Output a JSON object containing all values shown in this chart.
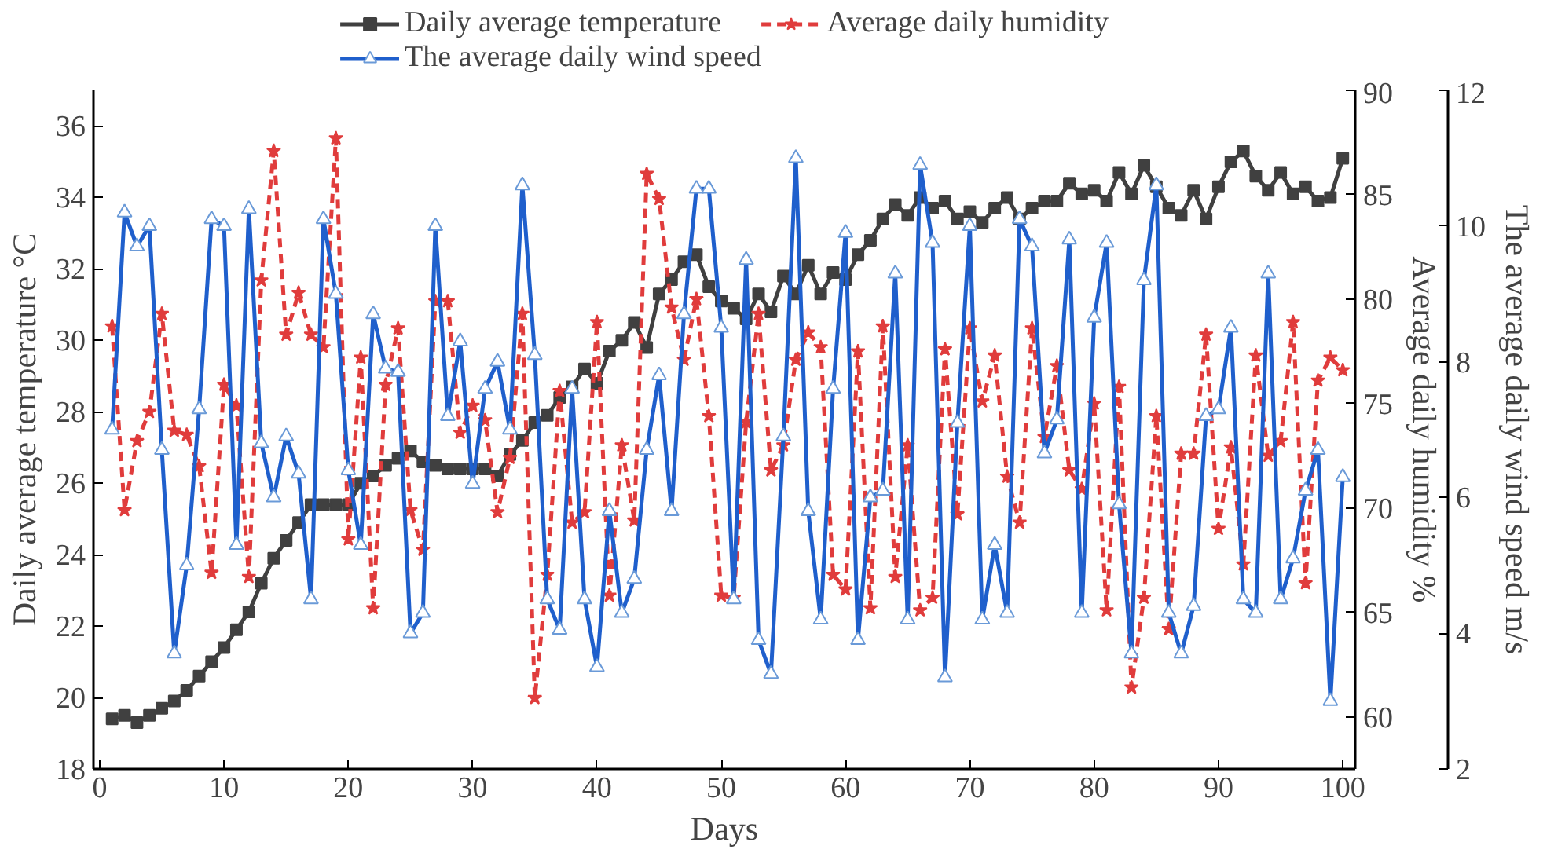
{
  "chart_data": {
    "type": "line",
    "xlabel": "Days",
    "ylabel": "Daily average temperature °C",
    "y2label": "Average daily humidity %",
    "y3label": "The average daily wind speed m/s",
    "x": [
      1,
      2,
      3,
      4,
      5,
      6,
      7,
      8,
      9,
      10,
      11,
      12,
      13,
      14,
      15,
      16,
      17,
      18,
      19,
      20,
      21,
      22,
      23,
      24,
      25,
      26,
      27,
      28,
      29,
      30,
      31,
      32,
      33,
      34,
      35,
      36,
      37,
      38,
      39,
      40,
      41,
      42,
      43,
      44,
      45,
      46,
      47,
      48,
      49,
      50,
      51,
      52,
      53,
      54,
      55,
      56,
      57,
      58,
      59,
      60,
      61,
      62,
      63,
      64,
      65,
      66,
      67,
      68,
      69,
      70,
      71,
      72,
      73,
      74,
      75,
      76,
      77,
      78,
      79,
      80,
      81,
      82,
      83,
      84,
      85,
      86,
      87,
      88,
      89,
      90,
      91,
      92,
      93,
      94,
      95,
      96,
      97,
      98,
      99,
      100
    ],
    "xlim": [
      -0.5,
      101
    ],
    "xticks": [
      0,
      10,
      20,
      30,
      40,
      50,
      60,
      70,
      80,
      90,
      100
    ],
    "ylim": [
      18,
      37
    ],
    "yticks": [
      18,
      20,
      22,
      24,
      26,
      28,
      30,
      32,
      34,
      36
    ],
    "y2lim": [
      57.5,
      90
    ],
    "y2ticks": [
      60,
      65,
      70,
      75,
      80,
      85,
      90
    ],
    "y3lim": [
      2,
      12
    ],
    "y3ticks": [
      2,
      4,
      6,
      8,
      10,
      12
    ],
    "legend": "top",
    "grid": false,
    "series": [
      {
        "name": "Daily average temperature",
        "color": "#404040",
        "marker": "square",
        "line_style": "solid",
        "values": [
          19.4,
          19.5,
          19.3,
          19.5,
          19.7,
          19.9,
          20.2,
          20.6,
          21.0,
          21.4,
          21.9,
          22.4,
          23.2,
          23.9,
          24.4,
          24.9,
          25.4,
          25.4,
          25.4,
          25.4,
          26.0,
          26.2,
          26.5,
          26.7,
          26.9,
          26.6,
          26.5,
          26.4,
          26.4,
          26.4,
          26.4,
          26.2,
          26.8,
          27.2,
          27.7,
          27.9,
          28.4,
          28.7,
          29.2,
          28.8,
          29.7,
          30.0,
          30.5,
          29.8,
          31.3,
          31.7,
          32.2,
          32.4,
          31.5,
          31.1,
          30.9,
          30.6,
          31.3,
          30.8,
          31.8,
          31.3,
          32.1,
          31.3,
          31.9,
          31.7,
          32.4,
          32.8,
          33.4,
          33.8,
          33.5,
          34.0,
          33.7,
          33.9,
          33.4,
          33.6,
          33.3,
          33.7,
          34.0,
          33.4,
          33.7,
          33.9,
          33.9,
          34.4,
          34.1,
          34.2,
          33.9,
          34.7,
          34.1,
          34.9,
          34.3,
          33.7,
          33.5,
          34.2,
          33.4,
          34.3,
          35.0,
          35.3,
          34.6,
          34.2,
          34.7,
          34.1,
          34.3,
          33.9,
          34.0,
          35.1
        ]
      },
      {
        "name": "Average daily humidity",
        "axis": "y2",
        "color": "#e03c3c",
        "marker": "star",
        "line_style": "dashed",
        "values": [
          78.7,
          69.9,
          73.2,
          74.6,
          79.3,
          73.7,
          73.5,
          72.0,
          66.9,
          75.9,
          74.9,
          66.7,
          80.9,
          87.1,
          78.3,
          80.3,
          78.3,
          77.7,
          87.7,
          68.5,
          77.2,
          65.2,
          75.9,
          78.6,
          69.9,
          68.0,
          79.9,
          79.9,
          73.6,
          74.9,
          74.2,
          69.8,
          72.4,
          79.3,
          60.9,
          66.8,
          75.6,
          69.3,
          69.8,
          78.9,
          65.8,
          73.0,
          69.4,
          86.0,
          84.8,
          79.6,
          77.1,
          80.0,
          74.4,
          65.8,
          65.7,
          74.1,
          79.3,
          71.8,
          73.0,
          77.1,
          78.4,
          77.7,
          66.8,
          66.1,
          77.5,
          65.2,
          78.7,
          66.7,
          73.0,
          65.1,
          65.7,
          77.6,
          69.7,
          78.6,
          75.1,
          77.3,
          71.5,
          69.3,
          78.6,
          73.4,
          76.8,
          71.8,
          70.9,
          75.0,
          65.1,
          75.8,
          61.4,
          65.7,
          74.4,
          64.2,
          72.6,
          72.6,
          78.3,
          69.0,
          72.9,
          67.3,
          77.3,
          72.5,
          73.2,
          78.9,
          66.4,
          76.1,
          77.2,
          76.6
        ]
      },
      {
        "name": "The average daily wind speed",
        "axis": "y3",
        "color": "#1f5fcc",
        "marker": "triangle",
        "line_style": "solid",
        "values": [
          7.0,
          10.2,
          9.7,
          10.0,
          6.7,
          3.7,
          5.0,
          7.3,
          10.1,
          10.0,
          5.3,
          10.25,
          6.8,
          6.0,
          6.9,
          6.35,
          4.5,
          10.1,
          9.0,
          6.4,
          5.3,
          8.7,
          7.9,
          7.85,
          4.0,
          4.3,
          10.0,
          7.2,
          8.3,
          6.2,
          7.6,
          8.0,
          7.0,
          10.6,
          8.1,
          4.5,
          4.05,
          7.6,
          4.5,
          3.5,
          5.8,
          4.3,
          4.8,
          6.7,
          7.8,
          5.8,
          8.7,
          10.55,
          10.55,
          8.5,
          4.5,
          9.5,
          3.9,
          3.4,
          6.9,
          11.0,
          5.8,
          4.2,
          7.6,
          9.9,
          3.9,
          6.0,
          6.1,
          9.3,
          4.2,
          10.9,
          9.75,
          3.35,
          7.1,
          10.0,
          4.2,
          5.3,
          4.3,
          10.1,
          9.7,
          6.65,
          7.15,
          9.8,
          4.3,
          8.65,
          9.75,
          5.9,
          3.7,
          9.2,
          10.6,
          4.3,
          3.7,
          4.4,
          7.2,
          7.3,
          8.5,
          4.5,
          4.3,
          9.3,
          4.5,
          5.1,
          6.1,
          6.7,
          3.0,
          6.3
        ]
      }
    ]
  }
}
